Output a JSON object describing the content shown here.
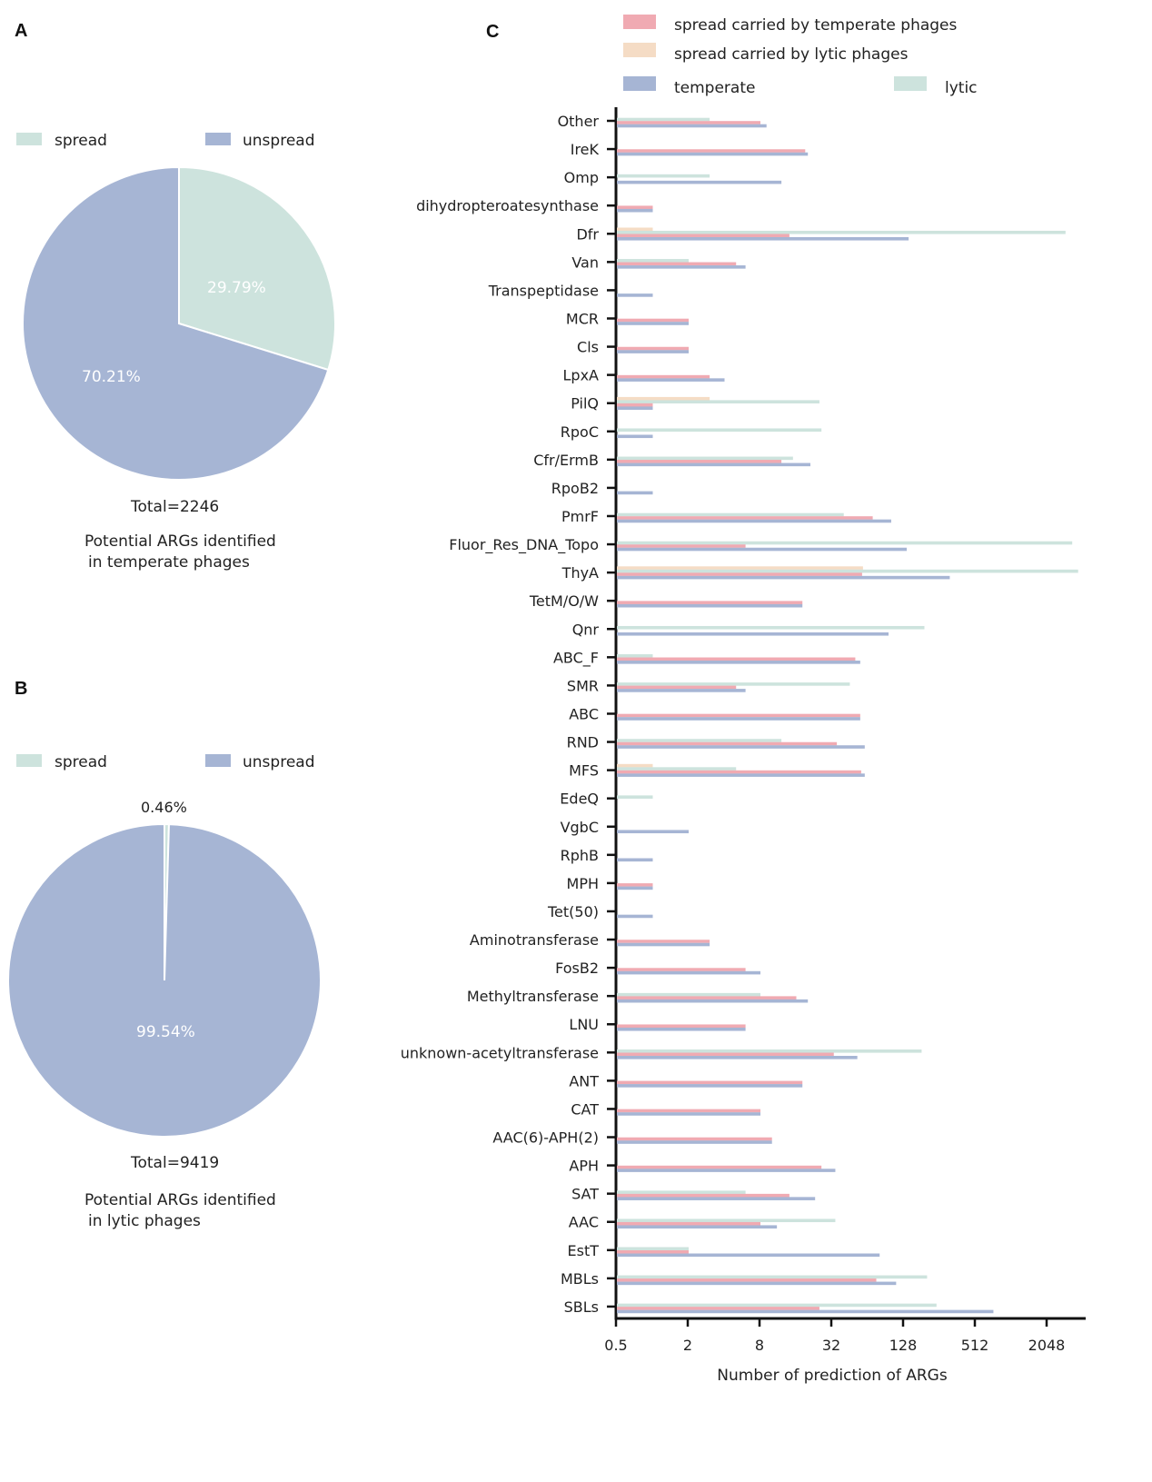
{
  "panels": {
    "a": {
      "letter": "A",
      "legend": [
        {
          "label": "spread",
          "color": "#cde3dd"
        },
        {
          "label": "unspread",
          "color": "#a6b5d4"
        }
      ],
      "total": "Total=2246",
      "caption_line1": "Potential ARGs identified",
      "caption_line2": "in temperate phages",
      "slices": [
        {
          "label": "29.79%",
          "value": 29.79,
          "color": "#cde3dd"
        },
        {
          "label": "70.21%",
          "value": 70.21,
          "color": "#a6b5d4"
        }
      ]
    },
    "b": {
      "letter": "B",
      "legend": [
        {
          "label": "spread",
          "color": "#cde3dd"
        },
        {
          "label": "unspread",
          "color": "#a6b5d4"
        }
      ],
      "total": "Total=9419",
      "caption_line1": "Potential ARGs identified",
      "caption_line2": "in lytic phages",
      "slices": [
        {
          "label": "0.46%",
          "value": 0.46,
          "color": "#cde3dd"
        },
        {
          "label": "99.54%",
          "value": 99.54,
          "color": "#a6b5d4"
        }
      ]
    },
    "c": {
      "letter": "C",
      "legend": [
        {
          "label": "spread carried by temperate phages",
          "color": "#f0aab2"
        },
        {
          "label": "spread carried by lytic phages",
          "color": "#f5dcc5"
        },
        {
          "label": "temperate",
          "color": "#a6b5d4"
        },
        {
          "label": "lytic",
          "color": "#cde3dd"
        }
      ]
    }
  },
  "chart_data": [
    {
      "type": "pie",
      "panel": "A",
      "labels": [
        "spread",
        "unspread"
      ],
      "values": [
        29.79,
        70.21
      ],
      "total": 2246
    },
    {
      "type": "pie",
      "panel": "B",
      "labels": [
        "spread",
        "unspread"
      ],
      "values": [
        0.46,
        99.54
      ],
      "total": 9419
    },
    {
      "type": "bar",
      "panel": "C",
      "orientation": "horizontal",
      "xscale": "log2",
      "xlim": [
        0.5,
        4096
      ],
      "xticks": [
        0.5,
        2,
        8,
        32,
        128,
        512,
        2048
      ],
      "xtick_labels": [
        "0.5",
        "2",
        "8",
        "32",
        "128",
        "512",
        "2048"
      ],
      "xlabel": "Number of prediction of ARGs",
      "categories": [
        "Other",
        "IreK",
        "Omp",
        "dihydropteroatesynthase",
        "Dfr",
        "Van",
        "Transpeptidase",
        "MCR",
        "Cls",
        "LpxA",
        "PilQ",
        "RpoC",
        "Cfr/ErmB",
        "RpoB2",
        "PmrF",
        "Fluor_Res_DNA_Topo",
        "ThyA",
        "TetM/O/W",
        "Qnr",
        "ABC_F",
        "SMR",
        "ABC",
        "RND",
        "MFS",
        "EdeQ",
        "VgbC",
        "RphB",
        "MPH",
        "Tet(50)",
        "Aminotransferase",
        "FosB2",
        "Methyltransferase",
        "LNU",
        "unknown-acetyltransferase",
        "ANT",
        "CAT",
        "AAC(6)-APH(2)",
        "APH",
        "SAT",
        "AAC",
        "EstT",
        "MBLs",
        "SBLs"
      ],
      "series": [
        {
          "name": "spread carried by lytic phages",
          "color": "#f5dcc5",
          "values": [
            null,
            null,
            null,
            null,
            1,
            null,
            null,
            null,
            null,
            null,
            3,
            null,
            null,
            null,
            null,
            null,
            58,
            null,
            null,
            null,
            null,
            null,
            null,
            1,
            null,
            null,
            null,
            null,
            null,
            null,
            null,
            null,
            null,
            null,
            null,
            null,
            null,
            null,
            null,
            null,
            null,
            null,
            null
          ]
        },
        {
          "name": "lytic",
          "color": "#cde3dd",
          "values": [
            3,
            null,
            3,
            null,
            2900,
            2,
            null,
            null,
            null,
            null,
            25,
            26,
            15,
            null,
            40,
            3300,
            3700,
            null,
            190,
            1,
            45,
            null,
            12,
            5,
            1,
            null,
            null,
            null,
            null,
            null,
            null,
            8,
            null,
            180,
            null,
            null,
            null,
            null,
            6,
            34,
            2,
            200,
            240
          ]
        },
        {
          "name": "spread carried by temperate phages",
          "color": "#f0aab2",
          "values": [
            8,
            19,
            null,
            1,
            14,
            5,
            null,
            2,
            2,
            3,
            1,
            null,
            12,
            null,
            70,
            6,
            57,
            18,
            null,
            50,
            5,
            55,
            35,
            56,
            null,
            null,
            null,
            1,
            null,
            3,
            6,
            16,
            6,
            33,
            18,
            8,
            10,
            26,
            14,
            8,
            2,
            75,
            25
          ]
        },
        {
          "name": "temperate",
          "color": "#a6b5d4",
          "values": [
            9,
            20,
            12,
            1,
            140,
            6,
            1,
            2,
            2,
            4,
            1,
            1,
            21,
            1,
            100,
            135,
            310,
            18,
            95,
            55,
            6,
            55,
            60,
            60,
            null,
            2,
            1,
            1,
            1,
            3,
            8,
            20,
            6,
            52,
            18,
            8,
            10,
            34,
            23,
            11,
            80,
            110,
            720
          ]
        }
      ]
    }
  ]
}
